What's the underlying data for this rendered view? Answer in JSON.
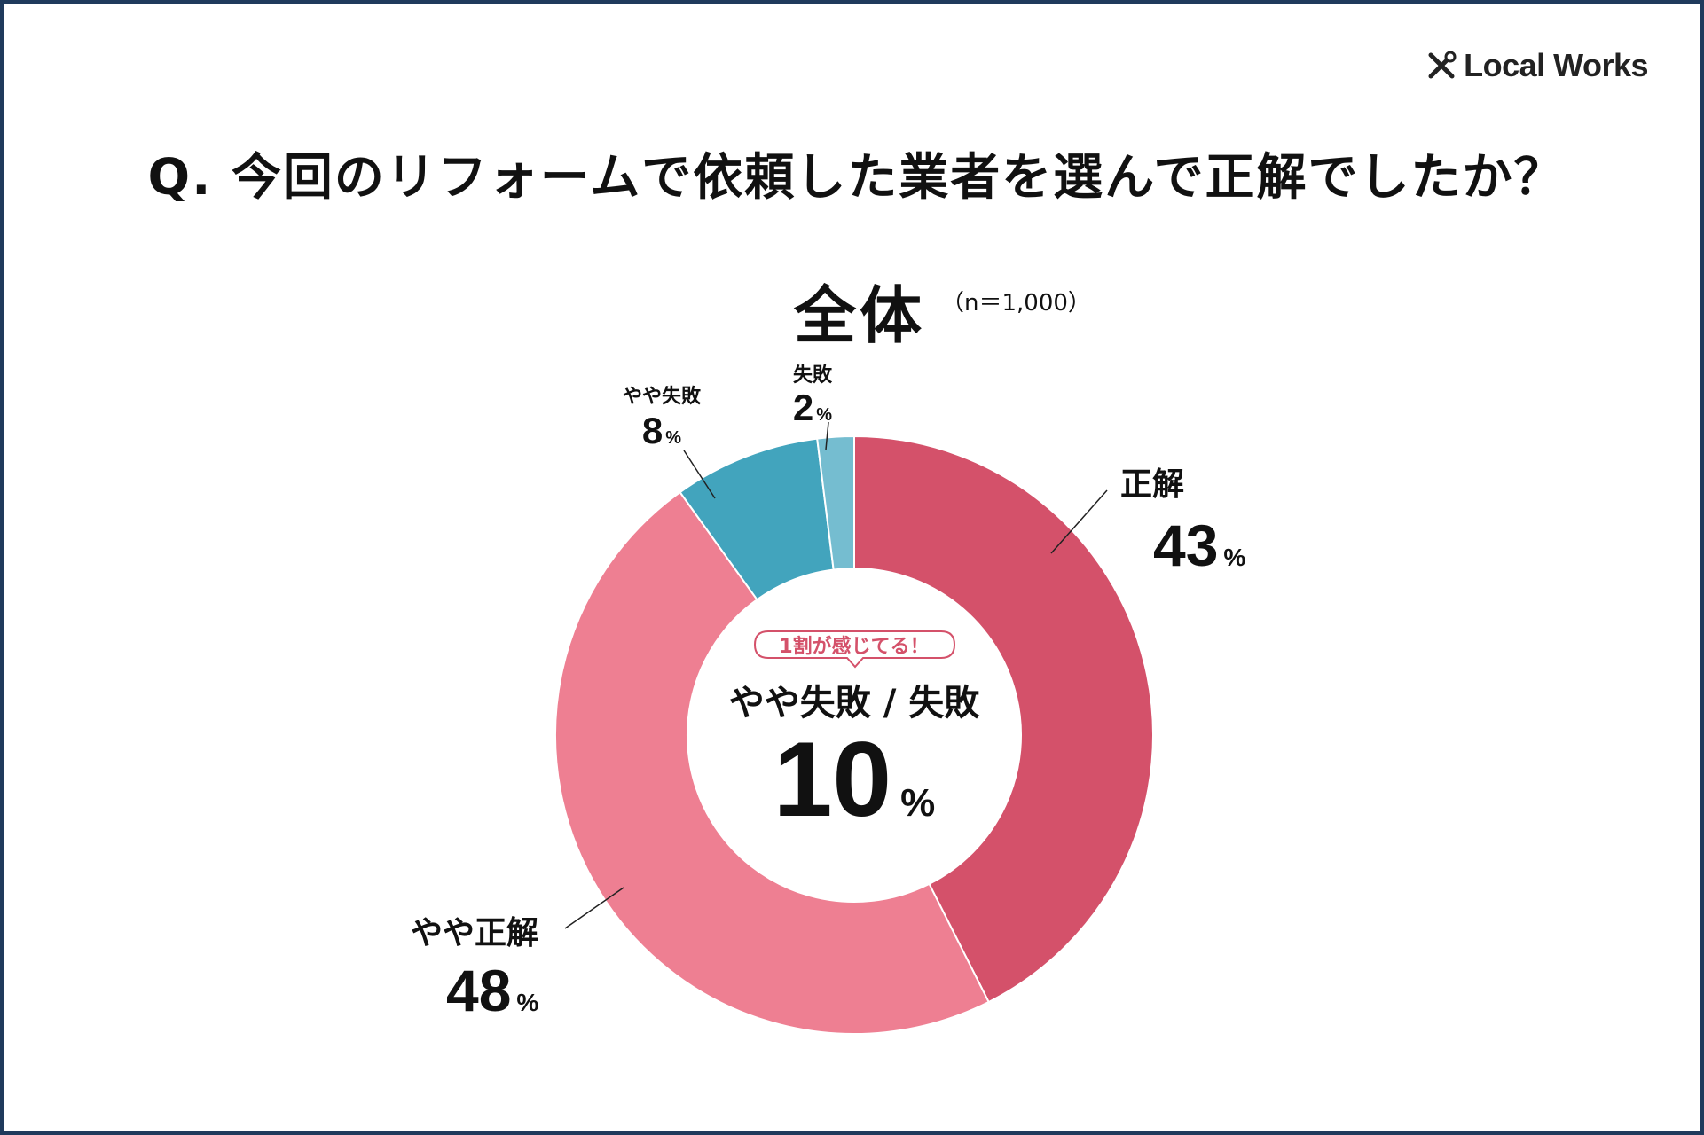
{
  "brand": {
    "name": "Local Works",
    "icon": "tools-icon"
  },
  "question": "Q. 今回のリフォームで依頼した業者を選んで正解でしたか？",
  "subtitle": "全体",
  "sample_size": "（n＝1,000）",
  "center": {
    "badge": "1割が感じてる！",
    "label": "やや失敗 / 失敗",
    "value": "10",
    "unit": "%"
  },
  "colors": {
    "frame": "#1f3a5c",
    "correct": "#d4516a",
    "somewhat_correct": "#ee7f92",
    "somewhat_failure": "#42a4bd",
    "failure": "#75bdd0",
    "badge": "#d4516a"
  },
  "chart_data": {
    "type": "pie",
    "title": "全体",
    "subtitle": "（n＝1,000）",
    "donut": true,
    "unit": "%",
    "slices": [
      {
        "label": "正解",
        "value": 43,
        "color": "#d4516a"
      },
      {
        "label": "やや正解",
        "value": 48,
        "color": "#ee7f92"
      },
      {
        "label": "やや失敗",
        "value": 8,
        "color": "#42a4bd"
      },
      {
        "label": "失敗",
        "value": 2,
        "color": "#75bdd0"
      }
    ]
  }
}
